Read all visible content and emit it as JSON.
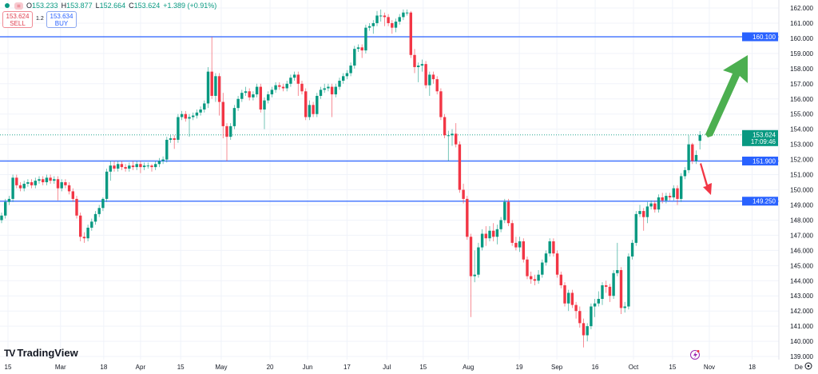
{
  "header": {
    "open_label": "O",
    "open": "153.233",
    "high_label": "H",
    "high": "153.877",
    "low_label": "L",
    "low": "152.664",
    "close_label": "C",
    "close": "153.624",
    "change": "+1.389 (+0.91%)",
    "sell_price": "153.624",
    "sell_label": "SELL",
    "spread": "1.2",
    "buy_price": "153.634",
    "buy_label": "BUY"
  },
  "brand": "TradingView",
  "colors": {
    "up": "#089981",
    "down": "#f23645",
    "level_line": "#2962ff",
    "grid": "#f0f3fa",
    "arrow_up": "#4caf50",
    "arrow_down": "#f23645"
  },
  "chart_data": {
    "type": "candlestick",
    "title": "",
    "ylim": [
      139,
      162
    ],
    "grid": true,
    "y_ticks": [
      "162.000",
      "161.000",
      "160.000",
      "159.000",
      "158.000",
      "157.000",
      "156.000",
      "155.000",
      "154.000",
      "153.000",
      "152.000",
      "151.000",
      "150.000",
      "149.000",
      "148.000",
      "147.000",
      "146.000",
      "145.000",
      "144.000",
      "143.000",
      "142.000",
      "141.000",
      "140.000",
      "139.000"
    ],
    "x_ticks": [
      {
        "label": "15",
        "bar_index": 1.7
      },
      {
        "label": "Mar",
        "bar_index": 15.7
      },
      {
        "label": "18",
        "bar_index": 27.2
      },
      {
        "label": "Apr",
        "bar_index": 37
      },
      {
        "label": "15",
        "bar_index": 47.7
      },
      {
        "label": "May",
        "bar_index": 58.5
      },
      {
        "label": "20",
        "bar_index": 71.5
      },
      {
        "label": "Jun",
        "bar_index": 81.5
      },
      {
        "label": "17",
        "bar_index": 92
      },
      {
        "label": "Jul",
        "bar_index": 102.6
      },
      {
        "label": "15",
        "bar_index": 112.3
      },
      {
        "label": "Aug",
        "bar_index": 124.3
      },
      {
        "label": "19",
        "bar_index": 137.9
      },
      {
        "label": "Sep",
        "bar_index": 147.9
      },
      {
        "label": "16",
        "bar_index": 158.1
      },
      {
        "label": "Oct",
        "bar_index": 168.3
      },
      {
        "label": "15",
        "bar_index": 178.7
      },
      {
        "label": "Nov",
        "bar_index": 188.5
      },
      {
        "label": "18",
        "bar_index": 199.9
      },
      {
        "label": "De",
        "bar_index": 212.3
      }
    ],
    "levels": [
      {
        "price": 160.1,
        "label": "160.100"
      },
      {
        "price": 151.9,
        "label": "151.900"
      },
      {
        "price": 149.25,
        "label": "149.250"
      }
    ],
    "last_price": {
      "price": 153.624,
      "label": "153.624",
      "countdown": "17:09:46"
    },
    "candles": [
      [
        148.0,
        148.5,
        147.8,
        148.3
      ],
      [
        148.3,
        149.4,
        148.1,
        149.2
      ],
      [
        149.2,
        149.6,
        149.0,
        149.4
      ],
      [
        149.4,
        151.0,
        149.2,
        150.8
      ],
      [
        150.8,
        151.0,
        150.1,
        150.3
      ],
      [
        150.3,
        150.5,
        149.9,
        150.1
      ],
      [
        150.1,
        150.6,
        149.9,
        150.4
      ],
      [
        150.4,
        150.7,
        150.2,
        150.5
      ],
      [
        150.5,
        150.7,
        150.1,
        150.3
      ],
      [
        150.3,
        150.8,
        150.1,
        150.6
      ],
      [
        150.6,
        150.9,
        150.4,
        150.7
      ],
      [
        150.7,
        150.9,
        150.3,
        150.5
      ],
      [
        150.5,
        151.0,
        150.3,
        150.8
      ],
      [
        150.8,
        151.0,
        150.4,
        150.6
      ],
      [
        150.6,
        150.9,
        150.4,
        150.7
      ],
      [
        150.7,
        150.9,
        149.3,
        150.1
      ],
      [
        150.1,
        150.7,
        149.9,
        150.5
      ],
      [
        150.5,
        150.7,
        150.1,
        150.3
      ],
      [
        150.3,
        150.5,
        149.7,
        149.9
      ],
      [
        149.9,
        150.1,
        149.2,
        149.4
      ],
      [
        149.4,
        149.6,
        148.1,
        148.3
      ],
      [
        148.3,
        148.5,
        146.6,
        146.9
      ],
      [
        146.9,
        147.2,
        146.5,
        146.8
      ],
      [
        146.8,
        147.7,
        146.6,
        147.5
      ],
      [
        147.5,
        148.1,
        147.3,
        147.9
      ],
      [
        147.9,
        148.6,
        147.7,
        148.4
      ],
      [
        148.4,
        149.0,
        148.2,
        148.8
      ],
      [
        148.8,
        149.5,
        148.6,
        149.4
      ],
      [
        149.4,
        151.4,
        149.2,
        151.2
      ],
      [
        151.2,
        151.9,
        150.6,
        151.6
      ],
      [
        151.6,
        151.9,
        151.2,
        151.4
      ],
      [
        151.4,
        151.9,
        151.2,
        151.7
      ],
      [
        151.7,
        151.9,
        151.3,
        151.5
      ],
      [
        151.5,
        151.7,
        151.2,
        151.4
      ],
      [
        151.4,
        151.8,
        151.2,
        151.6
      ],
      [
        151.6,
        151.9,
        151.3,
        151.5
      ],
      [
        151.5,
        151.9,
        151.3,
        151.7
      ],
      [
        151.7,
        151.9,
        151.1,
        151.5
      ],
      [
        151.5,
        151.8,
        151.3,
        151.6
      ],
      [
        151.6,
        151.8,
        151.4,
        151.6
      ],
      [
        151.6,
        151.7,
        151.2,
        151.5
      ],
      [
        151.5,
        151.9,
        151.3,
        151.7
      ],
      [
        151.7,
        152.1,
        151.5,
        151.9
      ],
      [
        151.9,
        152.2,
        151.7,
        152.0
      ],
      [
        152.0,
        153.5,
        151.8,
        153.3
      ],
      [
        153.3,
        153.6,
        153.1,
        153.4
      ],
      [
        153.4,
        153.6,
        152.7,
        153.3
      ],
      [
        153.3,
        155.0,
        153.1,
        154.8
      ],
      [
        154.8,
        155.2,
        154.6,
        155.0
      ],
      [
        155.0,
        155.2,
        154.5,
        154.7
      ],
      [
        154.7,
        155.0,
        153.5,
        154.8
      ],
      [
        154.8,
        155.1,
        154.6,
        154.9
      ],
      [
        154.9,
        155.3,
        154.7,
        155.1
      ],
      [
        155.1,
        155.5,
        154.9,
        155.3
      ],
      [
        155.3,
        155.9,
        155.1,
        155.7
      ],
      [
        155.7,
        158.1,
        155.4,
        157.8
      ],
      [
        157.8,
        160.1,
        156.0,
        156.2
      ],
      [
        156.2,
        157.7,
        155.8,
        157.5
      ],
      [
        157.5,
        157.7,
        154.9,
        155.8
      ],
      [
        155.8,
        156.4,
        153.4,
        154.2
      ],
      [
        154.2,
        154.4,
        151.9,
        153.5
      ],
      [
        153.5,
        154.4,
        153.3,
        154.2
      ],
      [
        154.2,
        155.6,
        154.0,
        155.4
      ],
      [
        155.4,
        156.2,
        155.2,
        156.0
      ],
      [
        156.0,
        156.6,
        155.8,
        156.4
      ],
      [
        156.4,
        156.8,
        156.2,
        156.5
      ],
      [
        156.5,
        156.7,
        155.9,
        156.1
      ],
      [
        156.1,
        156.5,
        155.9,
        156.3
      ],
      [
        156.3,
        157.0,
        156.1,
        156.8
      ],
      [
        156.8,
        157.0,
        155.1,
        155.3
      ],
      [
        155.3,
        156.1,
        154.0,
        155.9
      ],
      [
        155.9,
        156.5,
        155.7,
        156.3
      ],
      [
        156.3,
        156.8,
        156.1,
        156.6
      ],
      [
        156.6,
        157.1,
        156.4,
        156.9
      ],
      [
        156.9,
        157.1,
        156.6,
        156.8
      ],
      [
        156.8,
        157.0,
        156.5,
        156.7
      ],
      [
        156.7,
        157.2,
        156.5,
        157.0
      ],
      [
        157.0,
        157.6,
        156.8,
        157.4
      ],
      [
        157.4,
        157.8,
        157.2,
        157.6
      ],
      [
        157.6,
        157.8,
        156.2,
        157.0
      ],
      [
        157.0,
        157.2,
        156.3,
        156.5
      ],
      [
        156.5,
        156.7,
        154.6,
        154.8
      ],
      [
        154.8,
        155.9,
        154.6,
        155.6
      ],
      [
        155.6,
        155.8,
        154.8,
        155.0
      ],
      [
        155.0,
        156.4,
        154.8,
        156.2
      ],
      [
        156.2,
        156.8,
        156.0,
        156.6
      ],
      [
        156.6,
        157.0,
        156.4,
        156.7
      ],
      [
        156.7,
        157.0,
        156.5,
        156.8
      ],
      [
        156.8,
        157.0,
        154.8,
        156.3
      ],
      [
        156.3,
        157.0,
        156.1,
        156.8
      ],
      [
        156.8,
        157.4,
        156.6,
        157.2
      ],
      [
        157.2,
        157.7,
        157.0,
        157.5
      ],
      [
        157.5,
        157.9,
        157.3,
        157.7
      ],
      [
        157.7,
        158.4,
        157.5,
        158.2
      ],
      [
        158.2,
        159.5,
        158.0,
        159.3
      ],
      [
        159.3,
        159.6,
        159.1,
        159.4
      ],
      [
        159.4,
        159.6,
        158.7,
        159.2
      ],
      [
        159.2,
        160.9,
        159.0,
        160.7
      ],
      [
        160.7,
        161.0,
        160.5,
        160.8
      ],
      [
        160.8,
        161.2,
        160.3,
        161.0
      ],
      [
        161.0,
        161.8,
        160.8,
        161.5
      ],
      [
        161.5,
        161.9,
        161.1,
        161.5
      ],
      [
        161.5,
        161.7,
        160.8,
        161.4
      ],
      [
        161.4,
        161.6,
        160.8,
        161.0
      ],
      [
        161.0,
        161.2,
        160.3,
        160.7
      ],
      [
        160.7,
        161.3,
        160.4,
        161.1
      ],
      [
        161.1,
        161.6,
        160.9,
        161.4
      ],
      [
        161.4,
        161.9,
        161.2,
        161.7
      ],
      [
        161.7,
        161.9,
        161.5,
        161.7
      ],
      [
        161.7,
        161.8,
        158.7,
        158.9
      ],
      [
        158.9,
        159.3,
        157.7,
        158.1
      ],
      [
        158.1,
        158.4,
        157.1,
        158.2
      ],
      [
        158.2,
        158.6,
        157.8,
        158.3
      ],
      [
        158.3,
        158.5,
        156.7,
        156.9
      ],
      [
        156.9,
        157.8,
        156.2,
        157.6
      ],
      [
        157.6,
        157.8,
        157.0,
        157.3
      ],
      [
        157.3,
        157.5,
        156.3,
        156.5
      ],
      [
        156.5,
        156.7,
        154.6,
        154.8
      ],
      [
        154.8,
        155.0,
        153.4,
        153.6
      ],
      [
        153.6,
        153.9,
        151.9,
        153.6
      ],
      [
        153.6,
        154.0,
        152.9,
        153.7
      ],
      [
        153.7,
        154.4,
        152.8,
        153.0
      ],
      [
        153.0,
        153.2,
        149.8,
        150.0
      ],
      [
        150.0,
        150.4,
        149.1,
        149.4
      ],
      [
        149.4,
        149.6,
        146.7,
        146.9
      ],
      [
        146.9,
        147.1,
        141.6,
        144.3
      ],
      [
        144.3,
        146.0,
        143.9,
        144.4
      ],
      [
        144.4,
        146.5,
        144.2,
        146.2
      ],
      [
        146.2,
        147.4,
        146.0,
        147.1
      ],
      [
        147.1,
        147.6,
        146.3,
        146.8
      ],
      [
        146.8,
        147.6,
        146.6,
        147.3
      ],
      [
        147.3,
        147.8,
        146.6,
        146.9
      ],
      [
        146.9,
        147.7,
        146.4,
        147.4
      ],
      [
        147.4,
        148.2,
        147.2,
        148.0
      ],
      [
        148.0,
        149.4,
        147.8,
        149.2
      ],
      [
        149.2,
        149.4,
        147.6,
        147.8
      ],
      [
        147.8,
        148.0,
        146.3,
        146.5
      ],
      [
        146.5,
        146.9,
        146.0,
        146.2
      ],
      [
        146.2,
        146.9,
        145.9,
        146.6
      ],
      [
        146.6,
        146.8,
        145.2,
        145.4
      ],
      [
        145.4,
        145.6,
        144.1,
        144.3
      ],
      [
        144.3,
        144.6,
        143.8,
        144.1
      ],
      [
        144.1,
        144.4,
        143.7,
        144.0
      ],
      [
        144.0,
        144.7,
        143.8,
        144.4
      ],
      [
        144.4,
        145.4,
        144.2,
        145.2
      ],
      [
        145.2,
        146.0,
        145.0,
        145.8
      ],
      [
        145.8,
        146.8,
        145.6,
        146.6
      ],
      [
        146.6,
        146.8,
        145.6,
        145.8
      ],
      [
        145.8,
        146.0,
        144.2,
        144.4
      ],
      [
        144.4,
        144.6,
        143.5,
        143.7
      ],
      [
        143.7,
        143.9,
        142.3,
        142.5
      ],
      [
        142.5,
        143.4,
        142.0,
        143.2
      ],
      [
        143.2,
        143.4,
        142.2,
        142.4
      ],
      [
        142.4,
        142.6,
        141.5,
        142.0
      ],
      [
        142.0,
        142.3,
        140.9,
        141.2
      ],
      [
        141.2,
        141.5,
        139.6,
        140.4
      ],
      [
        140.4,
        141.2,
        140.0,
        141.0
      ],
      [
        141.0,
        142.5,
        140.8,
        142.3
      ],
      [
        142.3,
        142.8,
        141.6,
        142.5
      ],
      [
        142.5,
        143.3,
        142.3,
        142.8
      ],
      [
        142.8,
        143.9,
        142.4,
        143.7
      ],
      [
        143.7,
        144.0,
        143.2,
        143.6
      ],
      [
        143.6,
        143.8,
        142.6,
        143.0
      ],
      [
        143.0,
        144.7,
        142.8,
        144.5
      ],
      [
        144.5,
        146.5,
        144.3,
        144.7
      ],
      [
        144.7,
        144.9,
        141.8,
        142.2
      ],
      [
        142.2,
        142.6,
        141.9,
        142.3
      ],
      [
        142.3,
        145.8,
        142.1,
        145.6
      ],
      [
        145.6,
        146.7,
        145.4,
        146.5
      ],
      [
        146.5,
        148.6,
        146.3,
        148.4
      ],
      [
        148.4,
        149.0,
        148.2,
        148.6
      ],
      [
        148.6,
        148.8,
        147.3,
        148.2
      ],
      [
        148.2,
        149.2,
        147.8,
        148.9
      ],
      [
        148.9,
        149.3,
        148.7,
        149.1
      ],
      [
        149.1,
        149.3,
        148.5,
        148.7
      ],
      [
        148.7,
        149.7,
        148.5,
        149.5
      ],
      [
        149.5,
        149.8,
        149.1,
        149.3
      ],
      [
        149.3,
        149.8,
        149.1,
        149.6
      ],
      [
        149.6,
        149.8,
        149.3,
        149.5
      ],
      [
        149.5,
        150.3,
        149.3,
        150.1
      ],
      [
        150.1,
        150.3,
        149.0,
        149.4
      ],
      [
        149.4,
        151.1,
        149.2,
        150.9
      ],
      [
        150.9,
        151.5,
        150.7,
        151.3
      ],
      [
        151.3,
        153.6,
        151.1,
        153.0
      ],
      [
        153.0,
        153.1,
        151.7,
        151.9
      ],
      [
        151.9,
        152.6,
        151.7,
        152.3
      ],
      [
        153.233,
        153.877,
        152.664,
        153.624
      ]
    ]
  }
}
